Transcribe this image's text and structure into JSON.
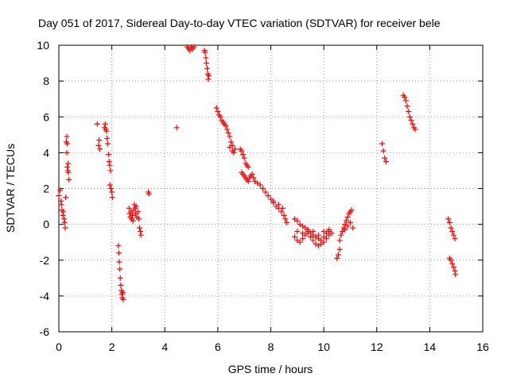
{
  "chart_data": {
    "type": "scatter",
    "title": "Day 051 of 2017, Sidereal Day-to-day VTEC variation (SDTVAR) for receiver bele",
    "xlabel": "GPS time / hours",
    "ylabel": "SDTVAR / TECUs",
    "xlim": [
      0,
      16
    ],
    "ylim": [
      -6,
      10
    ],
    "xticks": [
      "0",
      "2",
      "4",
      "6",
      "8",
      "10",
      "12",
      "14",
      "16"
    ],
    "yticks": [
      "-6",
      "-4",
      "-2",
      "0",
      "2",
      "4",
      "6",
      "8",
      "10"
    ],
    "grid": true,
    "marker": "+",
    "color": "#ff0000",
    "series": [
      {
        "name": "SDTVAR",
        "points": [
          [
            0.0,
            1.6
          ],
          [
            0.05,
            1.9
          ],
          [
            0.08,
            1.3
          ],
          [
            0.1,
            1.1
          ],
          [
            0.12,
            0.8
          ],
          [
            0.15,
            0.5
          ],
          [
            0.17,
            0.7
          ],
          [
            0.2,
            0.3
          ],
          [
            0.22,
            0.1
          ],
          [
            0.24,
            -0.2
          ],
          [
            0.26,
            1.5
          ],
          [
            0.28,
            4.6
          ],
          [
            0.3,
            4.9
          ],
          [
            0.32,
            4.5
          ],
          [
            0.3,
            4.0
          ],
          [
            0.32,
            3.2
          ],
          [
            0.35,
            3.4
          ],
          [
            0.36,
            2.9
          ],
          [
            0.38,
            2.5
          ],
          [
            0.34,
            3.0
          ],
          [
            1.45,
            5.6
          ],
          [
            1.5,
            4.4
          ],
          [
            1.52,
            4.7
          ],
          [
            1.55,
            4.2
          ],
          [
            1.72,
            5.4
          ],
          [
            1.75,
            5.6
          ],
          [
            1.78,
            5.3
          ],
          [
            1.8,
            5.2
          ],
          [
            1.82,
            4.8
          ],
          [
            1.85,
            4.5
          ],
          [
            1.88,
            3.9
          ],
          [
            1.9,
            3.5
          ],
          [
            1.92,
            3.3
          ],
          [
            1.95,
            3.0
          ],
          [
            1.93,
            2.2
          ],
          [
            1.97,
            2.0
          ],
          [
            2.0,
            1.8
          ],
          [
            2.02,
            1.5
          ],
          [
            2.25,
            -1.2
          ],
          [
            2.27,
            -1.6
          ],
          [
            2.28,
            -2.1
          ],
          [
            2.3,
            -2.5
          ],
          [
            2.32,
            -3.0
          ],
          [
            2.34,
            -3.4
          ],
          [
            2.36,
            -3.7
          ],
          [
            2.38,
            -3.9
          ],
          [
            2.4,
            -4.1
          ],
          [
            2.43,
            -4.2
          ],
          [
            2.42,
            -3.8
          ],
          [
            2.65,
            0.9
          ],
          [
            2.67,
            0.6
          ],
          [
            2.7,
            0.4
          ],
          [
            2.72,
            0.7
          ],
          [
            2.75,
            0.3
          ],
          [
            2.78,
            0.5
          ],
          [
            2.8,
            0.2
          ],
          [
            2.82,
            0.8
          ],
          [
            2.85,
            1.1
          ],
          [
            2.88,
            0.9
          ],
          [
            2.9,
            0.6
          ],
          [
            2.92,
            1.0
          ],
          [
            2.95,
            0.4
          ],
          [
            3.0,
            0.7
          ],
          [
            3.02,
            0.3
          ],
          [
            3.05,
            -0.2
          ],
          [
            3.08,
            -0.4
          ],
          [
            3.1,
            -0.6
          ],
          [
            3.38,
            1.8
          ],
          [
            3.4,
            1.7
          ],
          [
            4.45,
            5.4
          ],
          [
            4.85,
            9.9
          ],
          [
            4.9,
            9.8
          ],
          [
            4.95,
            9.7
          ],
          [
            5.0,
            9.9
          ],
          [
            5.05,
            9.8
          ],
          [
            5.1,
            9.9
          ],
          [
            5.5,
            9.7
          ],
          [
            5.52,
            9.6
          ],
          [
            5.55,
            9.3
          ],
          [
            5.57,
            9.0
          ],
          [
            5.6,
            8.7
          ],
          [
            5.62,
            8.4
          ],
          [
            5.64,
            8.1
          ],
          [
            5.66,
            8.3
          ],
          [
            5.95,
            6.5
          ],
          [
            6.0,
            6.3
          ],
          [
            6.05,
            6.1
          ],
          [
            6.1,
            6.0
          ],
          [
            6.15,
            5.8
          ],
          [
            6.2,
            5.7
          ],
          [
            6.25,
            5.6
          ],
          [
            6.3,
            5.5
          ],
          [
            6.35,
            5.3
          ],
          [
            6.4,
            5.1
          ],
          [
            6.45,
            4.9
          ],
          [
            6.5,
            4.6
          ],
          [
            6.55,
            4.4
          ],
          [
            6.45,
            4.3
          ],
          [
            6.55,
            4.1
          ],
          [
            6.6,
            4.0
          ],
          [
            6.65,
            4.2
          ],
          [
            6.85,
            4.2
          ],
          [
            6.9,
            4.1
          ],
          [
            6.95,
            3.9
          ],
          [
            7.0,
            3.7
          ],
          [
            7.05,
            3.4
          ],
          [
            7.1,
            3.3
          ],
          [
            7.15,
            3.2
          ],
          [
            6.9,
            2.9
          ],
          [
            6.95,
            2.8
          ],
          [
            7.0,
            2.7
          ],
          [
            7.05,
            2.6
          ],
          [
            7.1,
            2.5
          ],
          [
            7.15,
            2.4
          ],
          [
            7.2,
            2.6
          ],
          [
            7.25,
            2.7
          ],
          [
            7.3,
            2.8
          ],
          [
            7.35,
            2.6
          ],
          [
            7.4,
            2.4
          ],
          [
            7.5,
            2.3
          ],
          [
            7.6,
            2.2
          ],
          [
            7.7,
            2.0
          ],
          [
            7.8,
            1.8
          ],
          [
            7.9,
            1.6
          ],
          [
            8.0,
            1.4
          ],
          [
            8.1,
            1.2
          ],
          [
            8.2,
            1.0
          ],
          [
            8.3,
            0.9
          ],
          [
            8.4,
            0.7
          ],
          [
            8.5,
            0.5
          ],
          [
            8.55,
            0.3
          ],
          [
            8.6,
            0.1
          ],
          [
            8.1,
            1.3
          ],
          [
            8.3,
            1.1
          ],
          [
            8.45,
            0.9
          ],
          [
            8.9,
            0.3
          ],
          [
            9.0,
            0.2
          ],
          [
            9.1,
            0.0
          ],
          [
            9.2,
            -0.1
          ],
          [
            9.3,
            -0.2
          ],
          [
            9.4,
            -0.4
          ],
          [
            9.5,
            -0.5
          ],
          [
            9.6,
            -0.6
          ],
          [
            9.7,
            -0.7
          ],
          [
            9.8,
            -0.8
          ],
          [
            9.9,
            -0.9
          ],
          [
            10.0,
            -0.7
          ],
          [
            10.1,
            -0.5
          ],
          [
            10.2,
            -0.4
          ],
          [
            8.9,
            -0.7
          ],
          [
            9.0,
            -0.9
          ],
          [
            9.1,
            -1.0
          ],
          [
            9.2,
            -0.8
          ],
          [
            9.3,
            -0.6
          ],
          [
            9.4,
            -0.5
          ],
          [
            9.5,
            -0.7
          ],
          [
            9.6,
            -0.9
          ],
          [
            9.7,
            -1.1
          ],
          [
            9.8,
            -1.2
          ],
          [
            9.9,
            -1.1
          ],
          [
            10.0,
            -1.0
          ],
          [
            10.1,
            -0.8
          ],
          [
            10.2,
            -0.6
          ],
          [
            10.3,
            -0.5
          ],
          [
            9.0,
            -0.4
          ],
          [
            9.2,
            -0.5
          ],
          [
            9.4,
            -0.3
          ],
          [
            9.6,
            -0.4
          ],
          [
            9.8,
            -0.6
          ],
          [
            10.0,
            -0.4
          ],
          [
            10.2,
            -0.3
          ],
          [
            10.5,
            -1.9
          ],
          [
            10.55,
            -1.7
          ],
          [
            10.6,
            -1.4
          ],
          [
            10.6,
            -0.9
          ],
          [
            10.65,
            -0.6
          ],
          [
            10.7,
            -0.4
          ],
          [
            10.75,
            -0.2
          ],
          [
            10.8,
            0.0
          ],
          [
            10.85,
            0.2
          ],
          [
            10.9,
            0.4
          ],
          [
            10.95,
            0.6
          ],
          [
            11.0,
            0.7
          ],
          [
            11.05,
            0.8
          ],
          [
            10.8,
            -0.3
          ],
          [
            10.9,
            -0.1
          ],
          [
            11.0,
            0.1
          ],
          [
            11.1,
            -0.2
          ],
          [
            12.2,
            4.5
          ],
          [
            12.25,
            4.1
          ],
          [
            12.3,
            3.7
          ],
          [
            12.35,
            3.5
          ],
          [
            13.0,
            7.2
          ],
          [
            13.05,
            7.1
          ],
          [
            13.1,
            6.9
          ],
          [
            13.15,
            6.6
          ],
          [
            13.2,
            6.3
          ],
          [
            13.25,
            6.0
          ],
          [
            13.3,
            5.8
          ],
          [
            13.35,
            5.6
          ],
          [
            13.4,
            5.4
          ],
          [
            13.45,
            5.3
          ],
          [
            14.7,
            0.3
          ],
          [
            14.75,
            0.1
          ],
          [
            14.8,
            -0.2
          ],
          [
            14.85,
            -0.4
          ],
          [
            14.9,
            -0.6
          ],
          [
            14.95,
            -0.8
          ],
          [
            14.75,
            -1.9
          ],
          [
            14.8,
            -2.0
          ],
          [
            14.85,
            -2.2
          ],
          [
            14.9,
            -2.4
          ],
          [
            14.95,
            -2.6
          ],
          [
            14.97,
            -2.8
          ]
        ]
      }
    ]
  }
}
